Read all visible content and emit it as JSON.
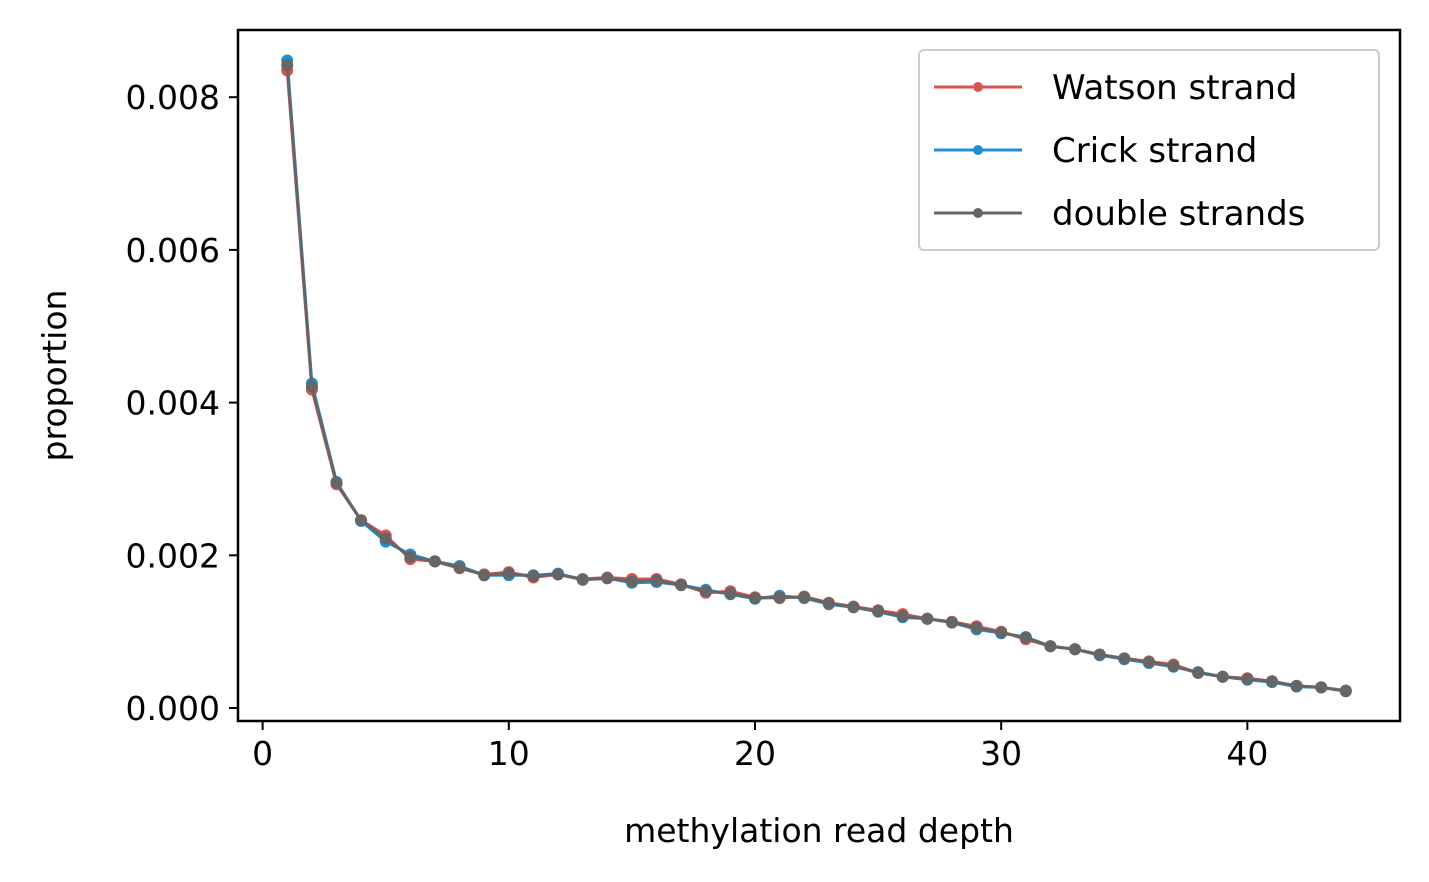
{
  "chart_data": {
    "type": "line",
    "title": "",
    "xlabel": "methylation read depth",
    "ylabel": "proportion",
    "xlim": [
      -1,
      46.2
    ],
    "ylim": [
      -0.00017,
      0.00888
    ],
    "xticks": [
      0,
      10,
      20,
      30,
      40
    ],
    "xtick_labels": [
      "0",
      "10",
      "20",
      "30",
      "40"
    ],
    "yticks": [
      0.0,
      0.002,
      0.004,
      0.006,
      0.008
    ],
    "ytick_labels": [
      "0.000",
      "0.002",
      "0.004",
      "0.006",
      "0.008"
    ],
    "grid": false,
    "legend_position": "top-right",
    "x": [
      1,
      2,
      3,
      4,
      5,
      6,
      7,
      8,
      9,
      10,
      11,
      12,
      13,
      14,
      15,
      16,
      17,
      18,
      19,
      20,
      21,
      22,
      23,
      24,
      25,
      26,
      27,
      28,
      29,
      30,
      31,
      32,
      33,
      34,
      35,
      36,
      37,
      38,
      39,
      40,
      41,
      42,
      43,
      44
    ],
    "series": [
      {
        "name": "Watson strand",
        "color": "#d9534f",
        "values": [
          0.00835,
          0.00417,
          0.00293,
          0.00246,
          0.00226,
          0.00195,
          0.00192,
          0.00183,
          0.00175,
          0.00178,
          0.00171,
          0.00175,
          0.00169,
          0.00171,
          0.00169,
          0.00169,
          0.00162,
          0.00151,
          0.00153,
          0.00145,
          0.00144,
          0.00146,
          0.00138,
          0.00133,
          0.00128,
          0.00123,
          0.00117,
          0.00113,
          0.00107,
          0.001,
          0.0009,
          0.00081,
          0.00077,
          0.0007,
          0.00065,
          0.00061,
          0.00057,
          0.00046,
          0.00041,
          0.00039,
          0.00035,
          0.00029,
          0.00027,
          0.00023
        ]
      },
      {
        "name": "Crick strand",
        "color": "#1f8fd6",
        "values": [
          0.00848,
          0.00425,
          0.00296,
          0.00245,
          0.00218,
          0.00201,
          0.00192,
          0.00186,
          0.00174,
          0.00174,
          0.00174,
          0.00176,
          0.00168,
          0.0017,
          0.00164,
          0.00165,
          0.00161,
          0.00155,
          0.00149,
          0.00143,
          0.00147,
          0.00144,
          0.00136,
          0.00132,
          0.00126,
          0.00119,
          0.00117,
          0.00112,
          0.00103,
          0.00098,
          0.00093,
          0.00081,
          0.00077,
          0.00069,
          0.00064,
          0.00059,
          0.00054,
          0.00047,
          0.00041,
          0.00037,
          0.00034,
          0.00028,
          0.00027,
          0.00022
        ]
      },
      {
        "name": "double strands",
        "color": "#666666",
        "values": [
          0.00842,
          0.00421,
          0.00295,
          0.00246,
          0.00222,
          0.00198,
          0.00192,
          0.00184,
          0.00174,
          0.00176,
          0.00173,
          0.00175,
          0.00168,
          0.0017,
          0.00166,
          0.00167,
          0.00161,
          0.00153,
          0.0015,
          0.00144,
          0.00145,
          0.00145,
          0.00137,
          0.00132,
          0.00127,
          0.0012,
          0.00117,
          0.00112,
          0.00105,
          0.00099,
          0.00092,
          0.00081,
          0.00077,
          0.0007,
          0.00065,
          0.0006,
          0.00055,
          0.00046,
          0.00041,
          0.00038,
          0.00035,
          0.00029,
          0.00027,
          0.00022
        ]
      }
    ]
  }
}
